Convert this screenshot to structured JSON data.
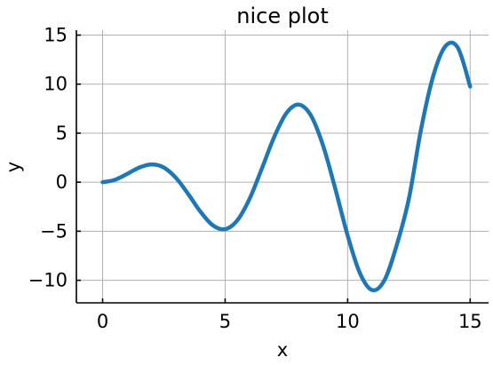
{
  "chart_data": {
    "type": "line",
    "title": "nice plot",
    "xlabel": "x",
    "ylabel": "y",
    "xlim": [
      -1.07,
      15.75
    ],
    "ylim": [
      -12.3,
      15.5
    ],
    "xticks": [
      0,
      5,
      10,
      15
    ],
    "xtick_labels": [
      "0",
      "5",
      "10",
      "15"
    ],
    "yticks": [
      -10,
      -5,
      0,
      5,
      10,
      15
    ],
    "ytick_labels": [
      "−10",
      "−5",
      "0",
      "5",
      "10",
      "15"
    ],
    "grid": true,
    "series": [
      {
        "color": "#1f77b4",
        "x": [
          0,
          0.5,
          1,
          1.5,
          2,
          2.5,
          3,
          3.5,
          4,
          4.5,
          5,
          5.5,
          6,
          6.5,
          7,
          7.5,
          8,
          8.5,
          9,
          9.5,
          10,
          10.5,
          11,
          11.5,
          12,
          12.5,
          13,
          13.5,
          14,
          14.5,
          15
        ],
        "y": [
          0,
          0.24,
          0.84,
          1.5,
          1.82,
          1.5,
          0.42,
          -1.23,
          -3.03,
          -4.4,
          -4.79,
          -3.88,
          -1.68,
          1.4,
          4.6,
          7.04,
          7.91,
          6.81,
          3.71,
          -0.71,
          -5.44,
          -9.27,
          -11.0,
          -10.0,
          -6.44,
          -1.66,
          5.46,
          10.9,
          13.9,
          13.7,
          9.75
        ]
      }
    ]
  }
}
